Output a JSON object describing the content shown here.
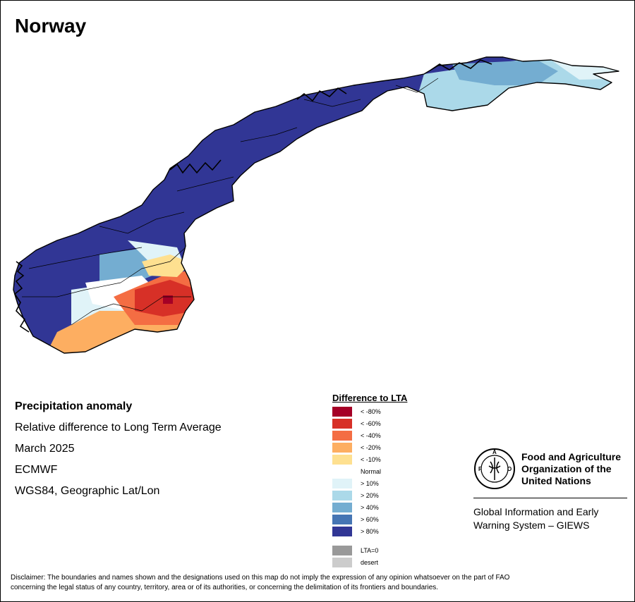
{
  "title": "Norway",
  "info": {
    "heading": "Precipitation anomaly",
    "subtitle": "Relative difference to Long Term Average",
    "period": "March 2025",
    "source": "ECMWF",
    "projection": "WGS84, Geographic Lat/Lon"
  },
  "legend": {
    "title": "Difference to LTA",
    "items": [
      {
        "label": "< -80%",
        "color": "#a50026"
      },
      {
        "label": "< -60%",
        "color": "#d73027"
      },
      {
        "label": "< -40%",
        "color": "#f46d43"
      },
      {
        "label": "< -20%",
        "color": "#fdae61"
      },
      {
        "label": "< -10%",
        "color": "#fee090"
      },
      {
        "label": "Normal",
        "color": "#ffffff"
      },
      {
        "label": "> 10%",
        "color": "#e0f3f8"
      },
      {
        "label": "> 20%",
        "color": "#abd9e9"
      },
      {
        "label": "> 40%",
        "color": "#74add1"
      },
      {
        "label": "> 60%",
        "color": "#4575b4"
      },
      {
        "label": "> 80%",
        "color": "#313695"
      }
    ],
    "extra": [
      {
        "label": "LTA=0",
        "color": "#999999"
      },
      {
        "label": "desert",
        "color": "#cccccc"
      }
    ]
  },
  "fao": {
    "line1": "Food and Agriculture",
    "line2": "Organization of the",
    "line3": "United Nations",
    "emblem_text": "FAO",
    "giews_line1": "Global Information and Early",
    "giews_line2": "Warning System – GIEWS"
  },
  "disclaimer": {
    "line1": "Disclaimer: The boundaries and names shown and the designations used on this map do not imply the expression of any opinion whatsoever on the part of FAO",
    "line2": "concerning the legal status of any country, territory, area or of its authorities, or concerning the delimitation of its frontiers and boundaries."
  }
}
